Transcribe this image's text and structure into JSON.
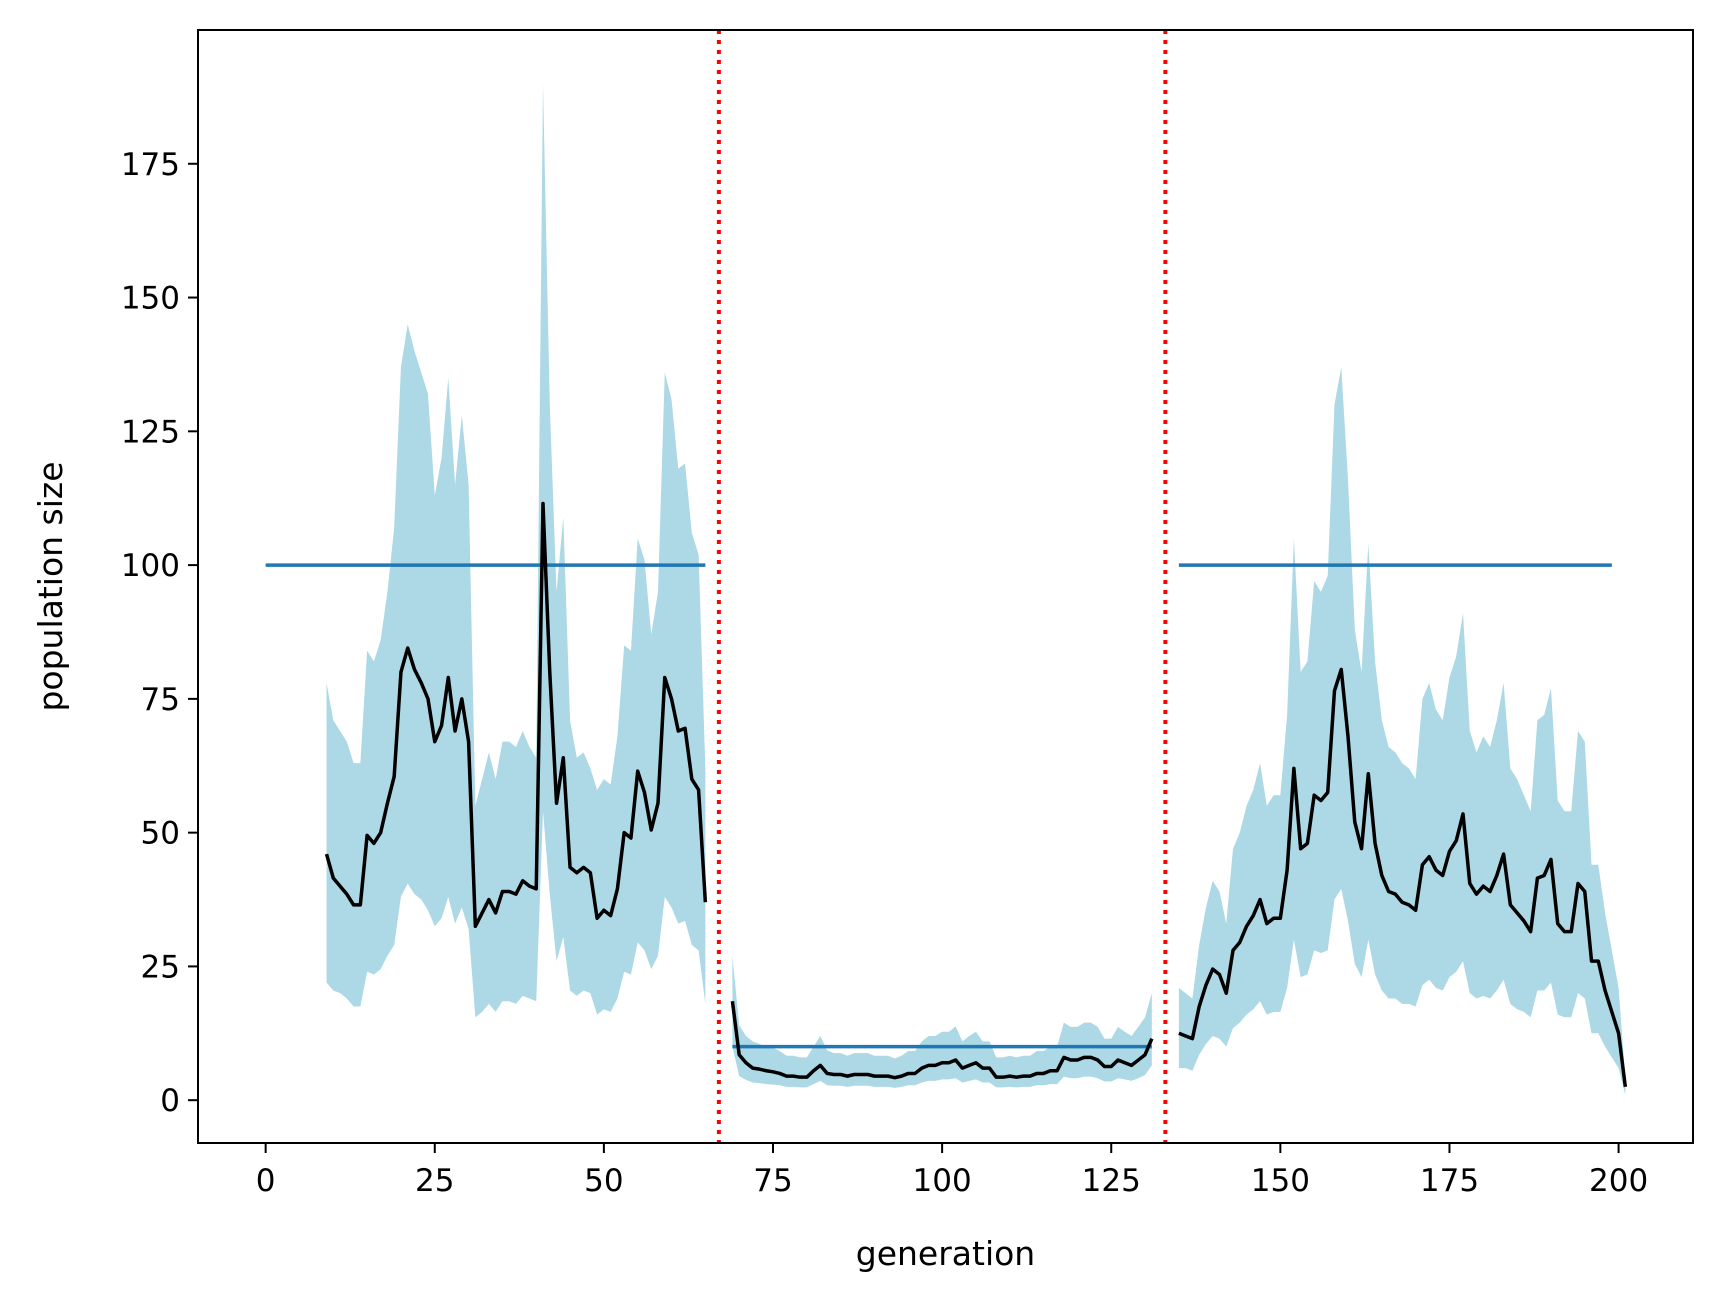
{
  "chart_data": {
    "type": "line",
    "title": "",
    "xlabel": "generation",
    "ylabel": "population size",
    "xlim": [
      -10,
      211
    ],
    "ylim": [
      -8,
      200
    ],
    "xticks": [
      0,
      25,
      50,
      75,
      100,
      125,
      150,
      175,
      200
    ],
    "yticks": [
      0,
      25,
      50,
      75,
      100,
      125,
      150,
      175
    ],
    "grid": false,
    "legend": "none",
    "colors": {
      "band": "#add8e6",
      "mean": "#000000",
      "target": "#1f77b4",
      "boundary": "#ff0000"
    },
    "vlines": [
      67,
      133
    ],
    "target_segments": [
      {
        "x": [
          0,
          65
        ],
        "y": 100
      },
      {
        "x": [
          69,
          131
        ],
        "y": 10
      },
      {
        "x": [
          135,
          199
        ],
        "y": 100
      }
    ],
    "series": [
      {
        "x": [
          9,
          10,
          11,
          12,
          13,
          14,
          15,
          16,
          17,
          18,
          19,
          20,
          21,
          22,
          23,
          24,
          25,
          26,
          27,
          28,
          29,
          30,
          31,
          32,
          33,
          34,
          35,
          36,
          37,
          38,
          39,
          40,
          41,
          42,
          43,
          44,
          45,
          46,
          47,
          48,
          49,
          50,
          51,
          52,
          53,
          54,
          55,
          56,
          57,
          58,
          59,
          60,
          61,
          62,
          63,
          64,
          65
        ],
        "mean": [
          46,
          41.5,
          40,
          38.5,
          36.5,
          36.5,
          49.5,
          48,
          50,
          55.5,
          60.5,
          80,
          84.5,
          80.5,
          78,
          75,
          67,
          70,
          79,
          69,
          75,
          67,
          32.5,
          35,
          37.5,
          35,
          39,
          39,
          38.5,
          41,
          40,
          39.5,
          111.5,
          80,
          55.5,
          64,
          43.5,
          42.5,
          43.5,
          42.5,
          34,
          35.5,
          34.5,
          39.5,
          50,
          49,
          61.5,
          57.5,
          50.5,
          55.5,
          79,
          75,
          69,
          69.5,
          60,
          58,
          37
        ],
        "upper": [
          78,
          71,
          69,
          67,
          63,
          63,
          84,
          82,
          86,
          95,
          107,
          137,
          145,
          140,
          136,
          132,
          113,
          120,
          135,
          115,
          128,
          115,
          55,
          60,
          65,
          60,
          67,
          67,
          66,
          69,
          66,
          64,
          190,
          130,
          95,
          109,
          71,
          64,
          65,
          62,
          58,
          60,
          59,
          68,
          85,
          84,
          105,
          101,
          87,
          95,
          136,
          131,
          118,
          119,
          106,
          102,
          62
        ],
        "lower": [
          22,
          20.5,
          20,
          19,
          17.5,
          17.5,
          24,
          23.5,
          24.5,
          27,
          29,
          38,
          40.5,
          38.5,
          37.5,
          35.5,
          32.5,
          34,
          38,
          33,
          36,
          32,
          15.5,
          16.5,
          18,
          16.5,
          18.5,
          18.5,
          18,
          19.5,
          19,
          18.5,
          54,
          38.5,
          26,
          30.5,
          20.5,
          19.5,
          20.5,
          20,
          16,
          17,
          16.5,
          19,
          24,
          23.5,
          29.5,
          28,
          24.5,
          27,
          38,
          36,
          33,
          33.5,
          29,
          28,
          18
        ]
      },
      {
        "x": [
          69,
          70,
          71,
          72,
          73,
          74,
          75,
          76,
          77,
          78,
          79,
          80,
          81,
          82,
          83,
          84,
          85,
          86,
          87,
          88,
          89,
          90,
          91,
          92,
          93,
          94,
          95,
          96,
          97,
          98,
          99,
          100,
          101,
          102,
          103,
          104,
          105,
          106,
          107,
          108,
          109,
          110,
          111,
          112,
          113,
          114,
          115,
          116,
          117,
          118,
          119,
          120,
          121,
          122,
          123,
          124,
          125,
          126,
          127,
          128,
          129,
          130,
          131
        ],
        "mean": [
          18.5,
          8.5,
          7,
          6,
          5.8,
          5.5,
          5.3,
          5,
          4.5,
          4.5,
          4.3,
          4.3,
          5.5,
          6.5,
          5,
          4.8,
          4.8,
          4.5,
          4.8,
          4.8,
          4.8,
          4.5,
          4.5,
          4.5,
          4.2,
          4.5,
          5,
          5,
          6,
          6.5,
          6.5,
          7,
          7,
          7.5,
          6,
          6.5,
          7,
          6,
          6,
          4.3,
          4.3,
          4.5,
          4.3,
          4.5,
          4.5,
          5,
          5,
          5.5,
          5.5,
          8,
          7.5,
          7.5,
          8,
          8,
          7.5,
          6.3,
          6.3,
          7.5,
          7,
          6.5,
          7.5,
          8.5,
          11.5
        ],
        "upper": [
          27,
          14,
          12,
          11,
          10.5,
          10,
          9.8,
          9.2,
          8.3,
          8.3,
          8,
          8,
          10,
          12,
          9.3,
          8.8,
          8.8,
          8.3,
          8.8,
          8.8,
          8.8,
          8.3,
          8.3,
          8.3,
          7.8,
          8.3,
          9.2,
          9.2,
          11,
          12,
          12,
          12.8,
          12.8,
          13.8,
          11,
          12,
          12.8,
          11,
          11,
          8,
          8,
          8.3,
          8,
          8.3,
          8.3,
          9.2,
          9.2,
          10,
          10,
          14.5,
          13.7,
          13.7,
          14.5,
          14.5,
          13.7,
          11.5,
          11.5,
          13.7,
          12.8,
          12,
          13.7,
          15.5,
          20
        ],
        "lower": [
          10,
          4.5,
          3.8,
          3.3,
          3.2,
          3,
          2.9,
          2.8,
          2.5,
          2.5,
          2.4,
          2.4,
          3,
          3.6,
          2.8,
          2.7,
          2.7,
          2.5,
          2.7,
          2.7,
          2.7,
          2.5,
          2.5,
          2.5,
          2.3,
          2.5,
          2.8,
          2.8,
          3.3,
          3.6,
          3.6,
          3.9,
          3.9,
          4.1,
          3.3,
          3.6,
          3.9,
          3.3,
          3.3,
          2.4,
          2.4,
          2.5,
          2.4,
          2.5,
          2.5,
          2.8,
          2.8,
          3,
          3,
          4.4,
          4.1,
          4.1,
          4.4,
          4.4,
          4.1,
          3.5,
          3.5,
          4.1,
          3.9,
          3.6,
          4.1,
          4.7,
          6.5
        ]
      },
      {
        "x": [
          135,
          136,
          137,
          138,
          139,
          140,
          141,
          142,
          143,
          144,
          145,
          146,
          147,
          148,
          149,
          150,
          151,
          152,
          153,
          154,
          155,
          156,
          157,
          158,
          159,
          160,
          161,
          162,
          163,
          164,
          165,
          166,
          167,
          168,
          169,
          170,
          171,
          172,
          173,
          174,
          175,
          176,
          177,
          178,
          179,
          180,
          181,
          182,
          183,
          184,
          185,
          186,
          187,
          188,
          189,
          190,
          191,
          192,
          193,
          194,
          195,
          196,
          197,
          198,
          199,
          200,
          201
        ],
        "mean": [
          12.5,
          12,
          11.5,
          17.5,
          21.5,
          24.5,
          23.5,
          20,
          28,
          29.5,
          32.5,
          34.5,
          37.5,
          33,
          34,
          34,
          43,
          62,
          47,
          48,
          57,
          56,
          57.5,
          76.5,
          80.5,
          68,
          52,
          47,
          61,
          48,
          42,
          39,
          38.5,
          37,
          36.5,
          35.5,
          44,
          45.5,
          43,
          42,
          46.5,
          48.5,
          53.5,
          40.5,
          38.5,
          40,
          39,
          42,
          46,
          36.5,
          35,
          33.5,
          31.5,
          41.5,
          42,
          45,
          33,
          31.5,
          31.5,
          40.5,
          39,
          26,
          26,
          20.5,
          16.5,
          12.5,
          2.5
        ],
        "upper": [
          21,
          20,
          19,
          29,
          36,
          41,
          39,
          33,
          47,
          50,
          55,
          58,
          63,
          55,
          57,
          57,
          72,
          105,
          80,
          82,
          97,
          95,
          98,
          130,
          137,
          116,
          88,
          80,
          104,
          82,
          71,
          66,
          65,
          63,
          62,
          60,
          75,
          78,
          73,
          71,
          79,
          83,
          91,
          69,
          65,
          68,
          66,
          71,
          78,
          62,
          60,
          57,
          54,
          71,
          72,
          77,
          56,
          54,
          54,
          69,
          67,
          44,
          44,
          35,
          28,
          21,
          4
        ],
        "lower": [
          6,
          6,
          5.5,
          8.5,
          10.5,
          12,
          11.5,
          10,
          13.5,
          14.5,
          16,
          17,
          18.5,
          16,
          16.5,
          16.5,
          21,
          30,
          23,
          23.5,
          28,
          27.5,
          28,
          37.5,
          39.5,
          33.5,
          25.5,
          23,
          30,
          23.5,
          20.5,
          19,
          19,
          18,
          18,
          17.5,
          21.5,
          22.5,
          21,
          20.5,
          23,
          24,
          26,
          20,
          19,
          19.5,
          19,
          20.5,
          22.5,
          18,
          17,
          16.5,
          15.5,
          20.5,
          20.5,
          22,
          16,
          15.5,
          15.5,
          20,
          19,
          12.5,
          12.5,
          10,
          8,
          6,
          1
        ]
      }
    ]
  }
}
